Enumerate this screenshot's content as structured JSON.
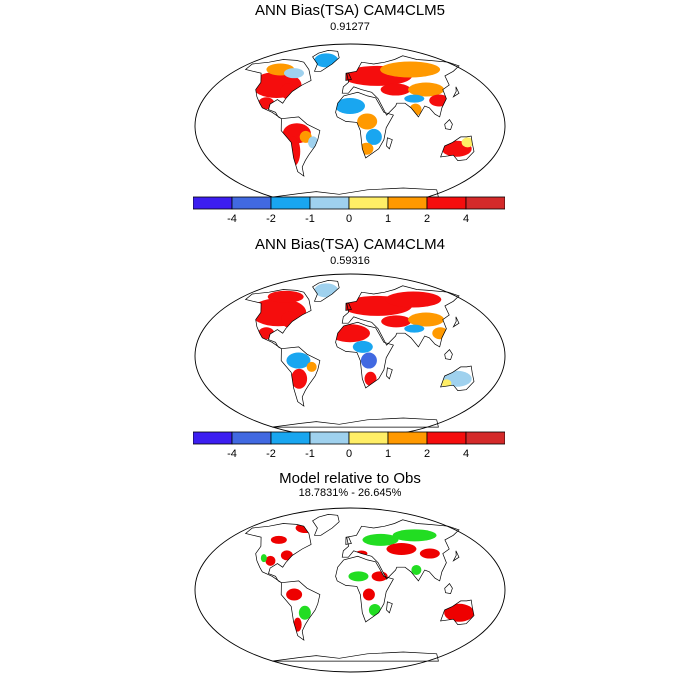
{
  "panels": [
    {
      "title": "ANN Bias(TSA) CAM4CLM5",
      "subtitle": "0.91277",
      "blobs": [
        {
          "lon": -100,
          "lat": 45,
          "rx": 25,
          "ry": 13,
          "c": "#f50d0d"
        },
        {
          "lon": -80,
          "lat": 38,
          "rx": 8,
          "ry": 8,
          "c": "#f50d0d"
        },
        {
          "lon": -110,
          "lat": 62,
          "rx": 14,
          "ry": 6,
          "c": "#ff9900"
        },
        {
          "lon": -85,
          "lat": 58,
          "rx": 10,
          "ry": 5,
          "c": "#9fd1ee"
        },
        {
          "lon": -42,
          "lat": 72,
          "rx": 12,
          "ry": 7,
          "c": "#19a6f0"
        },
        {
          "lon": -102,
          "lat": 25,
          "rx": 8,
          "ry": 6,
          "c": "#f50d0d"
        },
        {
          "lon": -62,
          "lat": -8,
          "rx": 14,
          "ry": 10,
          "c": "#f50d0d"
        },
        {
          "lon": -70,
          "lat": -28,
          "rx": 7,
          "ry": 15,
          "c": "#f50d0d"
        },
        {
          "lon": -52,
          "lat": -12,
          "rx": 6,
          "ry": 6,
          "c": "#ff9900"
        },
        {
          "lon": -44,
          "lat": -18,
          "rx": 5,
          "ry": 6,
          "c": "#9fd1ee"
        },
        {
          "lon": 0,
          "lat": 22,
          "rx": 15,
          "ry": 8,
          "c": "#19a6f0"
        },
        {
          "lon": 20,
          "lat": 5,
          "rx": 10,
          "ry": 8,
          "c": "#ff9900"
        },
        {
          "lon": 28,
          "lat": -12,
          "rx": 8,
          "ry": 8,
          "c": "#19a6f0"
        },
        {
          "lon": 20,
          "lat": -25,
          "rx": 7,
          "ry": 6,
          "c": "#ff9900"
        },
        {
          "lon": 40,
          "lat": 55,
          "rx": 35,
          "ry": 10,
          "c": "#f50d0d"
        },
        {
          "lon": 95,
          "lat": 62,
          "rx": 30,
          "ry": 8,
          "c": "#ff9900"
        },
        {
          "lon": 60,
          "lat": 40,
          "rx": 15,
          "ry": 6,
          "c": "#f50d0d"
        },
        {
          "lon": 100,
          "lat": 40,
          "rx": 18,
          "ry": 7,
          "c": "#ff9900"
        },
        {
          "lon": 80,
          "lat": 30,
          "rx": 10,
          "ry": 4,
          "c": "#19a6f0"
        },
        {
          "lon": 110,
          "lat": 28,
          "rx": 10,
          "ry": 6,
          "c": "#f50d0d"
        },
        {
          "lon": 78,
          "lat": 18,
          "rx": 6,
          "ry": 6,
          "c": "#ff9900"
        },
        {
          "lon": 130,
          "lat": -25,
          "rx": 15,
          "ry": 8,
          "c": "#f50d0d"
        },
        {
          "lon": 140,
          "lat": -18,
          "rx": 6,
          "ry": 5,
          "c": "#ffee66"
        }
      ]
    },
    {
      "title": "ANN Bias(TSA) CAM4CLM4",
      "subtitle": "0.59316",
      "blobs": [
        {
          "lon": -100,
          "lat": 48,
          "rx": 28,
          "ry": 14,
          "c": "#f50d0d"
        },
        {
          "lon": -105,
          "lat": 65,
          "rx": 18,
          "ry": 6,
          "c": "#f50d0d"
        },
        {
          "lon": -80,
          "lat": 40,
          "rx": 8,
          "ry": 8,
          "c": "#f50d0d"
        },
        {
          "lon": -42,
          "lat": 72,
          "rx": 12,
          "ry": 7,
          "c": "#9fd1ee"
        },
        {
          "lon": -102,
          "lat": 25,
          "rx": 8,
          "ry": 6,
          "c": "#f50d0d"
        },
        {
          "lon": -60,
          "lat": -5,
          "rx": 12,
          "ry": 8,
          "c": "#19a6f0"
        },
        {
          "lon": -62,
          "lat": -25,
          "rx": 8,
          "ry": 10,
          "c": "#f50d0d"
        },
        {
          "lon": -45,
          "lat": -12,
          "rx": 5,
          "ry": 5,
          "c": "#ff9900"
        },
        {
          "lon": 0,
          "lat": 25,
          "rx": 20,
          "ry": 9,
          "c": "#f50d0d"
        },
        {
          "lon": 15,
          "lat": 10,
          "rx": 10,
          "ry": 6,
          "c": "#19a6f0"
        },
        {
          "lon": 22,
          "lat": -5,
          "rx": 8,
          "ry": 8,
          "c": "#4169e1"
        },
        {
          "lon": 25,
          "lat": -25,
          "rx": 6,
          "ry": 7,
          "c": "#f50d0d"
        },
        {
          "lon": 40,
          "lat": 55,
          "rx": 35,
          "ry": 10,
          "c": "#f50d0d"
        },
        {
          "lon": 100,
          "lat": 62,
          "rx": 28,
          "ry": 8,
          "c": "#f50d0d"
        },
        {
          "lon": 60,
          "lat": 38,
          "rx": 15,
          "ry": 6,
          "c": "#f50d0d"
        },
        {
          "lon": 100,
          "lat": 40,
          "rx": 18,
          "ry": 7,
          "c": "#ff9900"
        },
        {
          "lon": 80,
          "lat": 30,
          "rx": 10,
          "ry": 4,
          "c": "#19a6f0"
        },
        {
          "lon": 110,
          "lat": 25,
          "rx": 8,
          "ry": 6,
          "c": "#ff9900"
        },
        {
          "lon": 130,
          "lat": -25,
          "rx": 15,
          "ry": 8,
          "c": "#9fd1ee"
        },
        {
          "lon": 120,
          "lat": -30,
          "rx": 5,
          "ry": 4,
          "c": "#ffee66"
        }
      ]
    },
    {
      "title": "Model relative to Obs",
      "subtitle": "18.7831% - 26.645%",
      "blobs": [
        {
          "lon": -105,
          "lat": 55,
          "rx": 8,
          "ry": 4,
          "c": "#ee0000"
        },
        {
          "lon": -75,
          "lat": 68,
          "rx": 10,
          "ry": 5,
          "c": "#ee0000"
        },
        {
          "lon": -82,
          "lat": 38,
          "rx": 6,
          "ry": 5,
          "c": "#ee0000"
        },
        {
          "lon": -100,
          "lat": 32,
          "rx": 5,
          "ry": 5,
          "c": "#ee0000"
        },
        {
          "lon": -110,
          "lat": 35,
          "rx": 3,
          "ry": 4,
          "c": "#22dd22"
        },
        {
          "lon": -65,
          "lat": -5,
          "rx": 8,
          "ry": 6,
          "c": "#ee0000"
        },
        {
          "lon": -55,
          "lat": -25,
          "rx": 6,
          "ry": 7,
          "c": "#22dd22"
        },
        {
          "lon": -68,
          "lat": -38,
          "rx": 4,
          "ry": 7,
          "c": "#ee0000"
        },
        {
          "lon": 15,
          "lat": 40,
          "rx": 6,
          "ry": 3,
          "c": "#ee0000"
        },
        {
          "lon": 45,
          "lat": 55,
          "rx": 18,
          "ry": 6,
          "c": "#22dd22"
        },
        {
          "lon": 70,
          "lat": 45,
          "rx": 15,
          "ry": 6,
          "c": "#ee0000"
        },
        {
          "lon": 100,
          "lat": 60,
          "rx": 22,
          "ry": 6,
          "c": "#22dd22"
        },
        {
          "lon": 105,
          "lat": 40,
          "rx": 10,
          "ry": 5,
          "c": "#ee0000"
        },
        {
          "lon": 10,
          "lat": 15,
          "rx": 10,
          "ry": 5,
          "c": "#22dd22"
        },
        {
          "lon": 35,
          "lat": 15,
          "rx": 8,
          "ry": 5,
          "c": "#ee0000"
        },
        {
          "lon": 22,
          "lat": -5,
          "rx": 6,
          "ry": 6,
          "c": "#ee0000"
        },
        {
          "lon": 30,
          "lat": -22,
          "rx": 6,
          "ry": 6,
          "c": "#22dd22"
        },
        {
          "lon": 80,
          "lat": 22,
          "rx": 5,
          "ry": 5,
          "c": "#22dd22"
        },
        {
          "lon": 133,
          "lat": -25,
          "rx": 15,
          "ry": 9,
          "c": "#ee0000"
        }
      ]
    }
  ],
  "colorbar": {
    "colors": [
      "#3c1ef0",
      "#4169e1",
      "#19a6f0",
      "#9fd1ee",
      "#ffee66",
      "#ff9900",
      "#f50d0d",
      "#d42a2a"
    ],
    "labels": [
      "-4",
      "-2",
      "-1",
      "0",
      "1",
      "2",
      "4"
    ]
  }
}
